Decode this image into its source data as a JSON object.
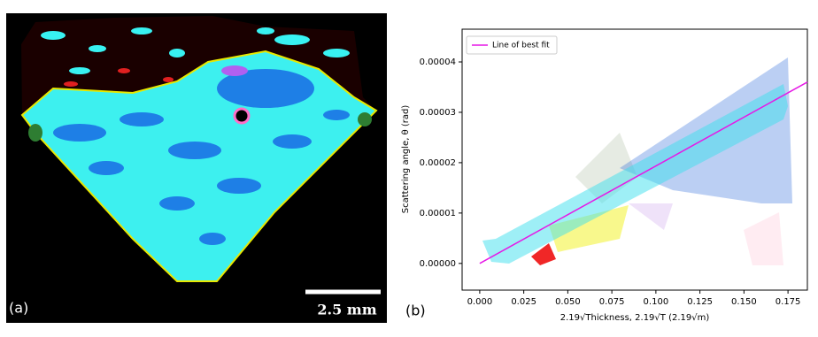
{
  "image_panel": {
    "label": "(a)",
    "scale_bar": "2.5 mm"
  },
  "chart_data": {
    "type": "line",
    "panel_label": "(b)",
    "x_label": "2.19√Thickness, 2.19√T (2.19√m)",
    "y_label": "Scattering angle, θ (rad)",
    "x": [
      0,
      0.186
    ],
    "series": [
      {
        "name": "Line of best fit",
        "color": "#e619e6",
        "values": [
          0,
          3.6e-05
        ]
      }
    ],
    "xlim": [
      -0.01,
      0.186
    ],
    "ylim": [
      -5.3e-06,
      4.65e-05
    ],
    "xticks": [
      {
        "value": 0,
        "label": "0.000"
      },
      {
        "value": 0.025,
        "label": "0.025"
      },
      {
        "value": 0.05,
        "label": "0.050"
      },
      {
        "value": 0.075,
        "label": "0.075"
      },
      {
        "value": 0.1,
        "label": "0.100"
      },
      {
        "value": 0.125,
        "label": "0.125"
      },
      {
        "value": 0.15,
        "label": "0.150"
      },
      {
        "value": 0.175,
        "label": "0.175"
      }
    ],
    "yticks": [
      {
        "value": 0,
        "label": "0.00000"
      },
      {
        "value": 1e-05,
        "label": "0.00001"
      },
      {
        "value": 2e-05,
        "label": "0.00002"
      },
      {
        "value": 3e-05,
        "label": "0.00003"
      },
      {
        "value": 4e-05,
        "label": "0.00004"
      }
    ],
    "legend": "upper left",
    "grid": false
  }
}
